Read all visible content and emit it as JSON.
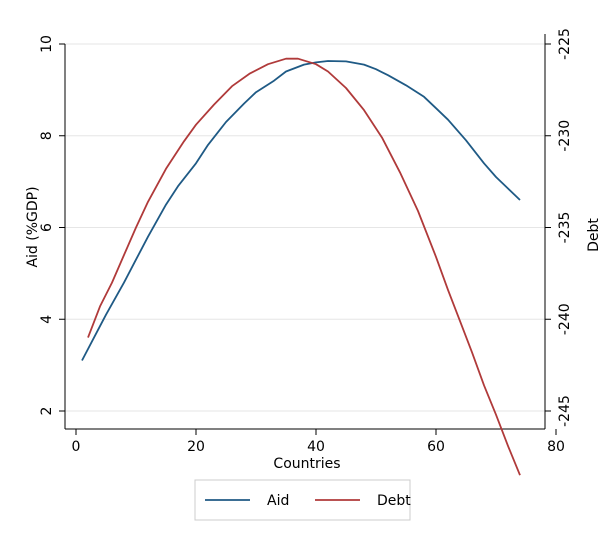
{
  "chart_data": {
    "type": "line",
    "xlabel": "Countries",
    "ylabel_left": "Aid (%GDP)",
    "ylabel_right": "Debt",
    "x_ticks": [
      0,
      20,
      40,
      60,
      80
    ],
    "y_left_ticks": [
      2,
      4,
      6,
      8,
      10
    ],
    "y_right_ticks": [
      -245,
      -240,
      -235,
      -230,
      -225
    ],
    "xlim": [
      0,
      80
    ],
    "ylim_left": [
      2,
      10
    ],
    "ylim_right": [
      -245,
      -225
    ],
    "grid": true,
    "legend_position": "bottom",
    "series": [
      {
        "name": "Aid",
        "axis": "left",
        "color": "#1f5a85",
        "x": [
          1,
          3,
          5,
          8,
          10,
          12,
          15,
          17,
          20,
          22,
          25,
          28,
          30,
          33,
          35,
          38,
          40,
          42,
          45,
          48,
          50,
          52,
          55,
          58,
          60,
          62,
          65,
          68,
          70,
          72,
          74
        ],
        "y": [
          3.1,
          3.6,
          4.1,
          4.8,
          5.3,
          5.8,
          6.5,
          6.9,
          7.4,
          7.8,
          8.3,
          8.7,
          8.95,
          9.2,
          9.4,
          9.55,
          9.6,
          9.63,
          9.62,
          9.55,
          9.45,
          9.32,
          9.1,
          8.85,
          8.6,
          8.35,
          7.9,
          7.4,
          7.1,
          6.85,
          6.6
        ]
      },
      {
        "name": "Debt",
        "axis": "right",
        "color": "#b03a3a",
        "x": [
          2,
          4,
          6,
          8,
          10,
          12,
          15,
          18,
          20,
          23,
          26,
          29,
          32,
          35,
          37,
          40,
          42,
          45,
          48,
          51,
          54,
          57,
          60,
          62,
          64,
          66,
          68,
          70,
          72,
          74
        ],
        "y": [
          -241,
          -239.3,
          -238,
          -236.5,
          -235,
          -233.6,
          -231.8,
          -230.3,
          -229.4,
          -228.3,
          -227.3,
          -226.6,
          -226.1,
          -225.8,
          -225.8,
          -226.1,
          -226.5,
          -227.4,
          -228.6,
          -230.1,
          -232,
          -234.1,
          -236.6,
          -238.4,
          -240.1,
          -241.8,
          -243.6,
          -245.2,
          -246.9,
          -248.5
        ]
      }
    ]
  }
}
